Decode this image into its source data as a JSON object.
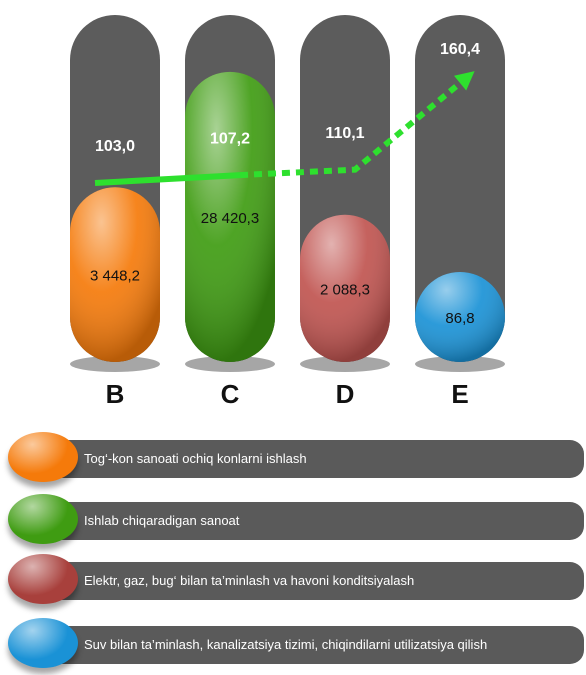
{
  "chart_data": {
    "type": "bar",
    "categories": [
      "B",
      "C",
      "D",
      "E"
    ],
    "values": [
      3448.2,
      28420.3,
      2088.3,
      86.8
    ],
    "value_labels": [
      "3 448,2",
      "28 420,3",
      "2 088,3",
      "86,8"
    ],
    "colors": [
      "#f57a0a",
      "#3f9c12",
      "#c05450",
      "#1a92d6"
    ],
    "log_scale": true,
    "index_line": {
      "type": "line",
      "values": [
        103.0,
        107.2,
        110.1,
        160.4
      ],
      "value_labels": [
        "103,0",
        "107,2",
        "110,1",
        "160,4"
      ],
      "color": "#2ee02e"
    },
    "legend": [
      {
        "label": "Tog‘-kon sanoati ochiq konlarni ishlash",
        "color": "#f57a0a"
      },
      {
        "label": "Ishlab chiqaradigan sanoat",
        "color": "#3f9c12"
      },
      {
        "label": "Elektr, gaz, bug‘ bilan ta’minlash va havoni konditsiyalash",
        "color": "#a8403c"
      },
      {
        "label": "Suv bilan ta’minlash, kanalizatsiya tizimi, chiqindilarni utilizatsiya qilish",
        "color": "#1a92d6"
      }
    ]
  }
}
